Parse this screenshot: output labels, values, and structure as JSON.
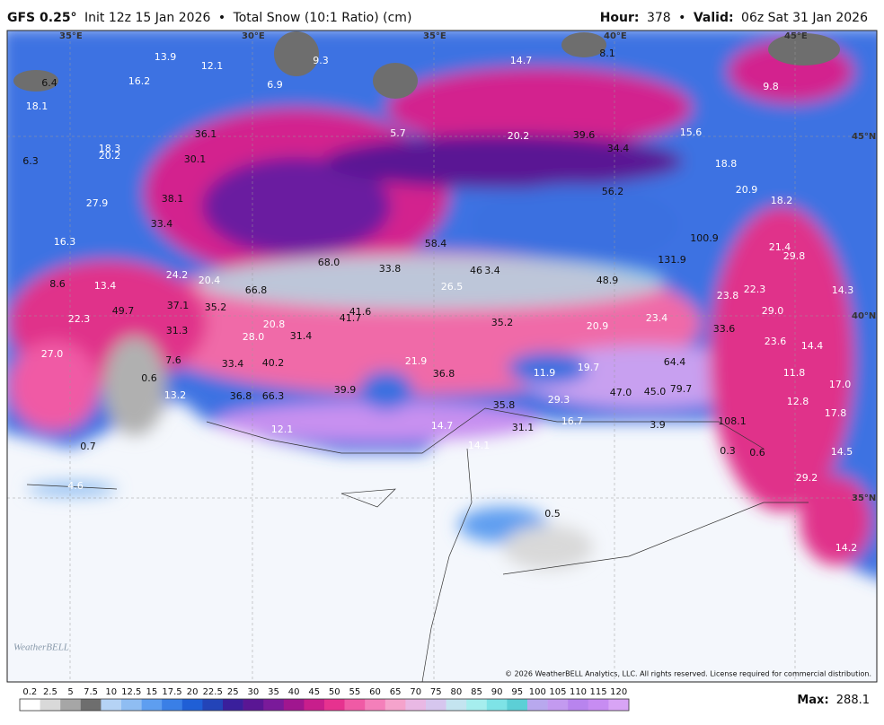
{
  "header": {
    "model": "GFS 0.25°",
    "init": "Init 12z 15 Jan 2026",
    "separator": "•",
    "product": "Total Snow (10:1 Ratio) (cm)",
    "hour_label": "Hour:",
    "hour": 378,
    "valid_label": "Valid:",
    "valid": "06z Sat 31 Jan 2026"
  },
  "map": {
    "coords": [
      "35°E",
      "30°E",
      "35°E",
      "40°E",
      "45°E",
      "45°N",
      "40°N",
      "35°N"
    ],
    "values": [
      "13.9",
      "12.1",
      "9.3",
      "6.9",
      "14.7",
      "8.1",
      "9.8",
      "6.4",
      "16.2",
      "18.1",
      "5.7",
      "20.2",
      "39.6",
      "34.4",
      "15.6",
      "36.1",
      "18.3",
      "20.2",
      "6.3",
      "30.1",
      "18.8",
      "27.9",
      "38.1",
      "56.2",
      "20.9",
      "18.2",
      "33.4",
      "16.3",
      "58.4",
      "100.9",
      "21.4",
      "29.8",
      "68.0",
      "131.9",
      "33.8",
      "46",
      "3.4",
      "24.2",
      "20.4",
      "26.5",
      "48.9",
      "8.6",
      "13.4",
      "66.8",
      "14.3",
      "23.8",
      "22.3",
      "29.0",
      "37.1",
      "35.2",
      "22.3",
      "49.7",
      "41.6",
      "41.7",
      "20.8",
      "35.2",
      "23.4",
      "20.9",
      "33.6",
      "31.3",
      "28.0",
      "31.4",
      "23.6",
      "14.4",
      "27.0",
      "7.6",
      "33.4",
      "40.2",
      "21.9",
      "64.4",
      "11.9",
      "19.7",
      "36.8",
      "11.8",
      "17.0",
      "0.6",
      "39.9",
      "47.0",
      "45.0",
      "79.7",
      "13.2",
      "36.8",
      "66.3",
      "29.3",
      "12.8",
      "35.8",
      "17.8",
      "16.7",
      "108.1",
      "14.7",
      "31.1",
      "3.9",
      "12.1",
      "14.1",
      "0.3",
      "0.6",
      "0.7",
      "14.5",
      "29.2",
      "4.6",
      "0.5",
      "14.2"
    ],
    "logo": "WeatherBELL",
    "copyright": "© 2026 WeatherBELL Analytics, LLC. All rights reserved. License required for commercial distribution."
  },
  "legend": {
    "ticks": [
      0.2,
      2.5,
      5,
      7.5,
      10,
      12.5,
      15,
      17.5,
      20,
      22.5,
      25,
      30,
      35,
      40,
      45,
      50,
      55,
      60,
      65,
      70,
      75,
      80,
      85,
      90,
      95,
      100,
      105,
      110,
      115,
      120
    ],
    "colors": [
      "#ffffff",
      "#d9d9d9",
      "#a6a6a6",
      "#6e6e6e",
      "#b5d3f5",
      "#8fbdf2",
      "#5e9ef0",
      "#3a7fe6",
      "#1f5fd6",
      "#2344b8",
      "#3a1f9c",
      "#5a1694",
      "#7a1a9a",
      "#a0168f",
      "#c81e8c",
      "#e6328f",
      "#f05aa5",
      "#f47fba",
      "#f5a3cc",
      "#e9b8e4",
      "#d6c6ee",
      "#c4e4f0",
      "#a6eeee",
      "#7ee3e6",
      "#5ccfd6",
      "#b8a8ee",
      "#c39af0",
      "#b884ee",
      "#c78cf2",
      "#d8a4f5"
    ],
    "max_label": "Max:",
    "max": 288.1
  }
}
